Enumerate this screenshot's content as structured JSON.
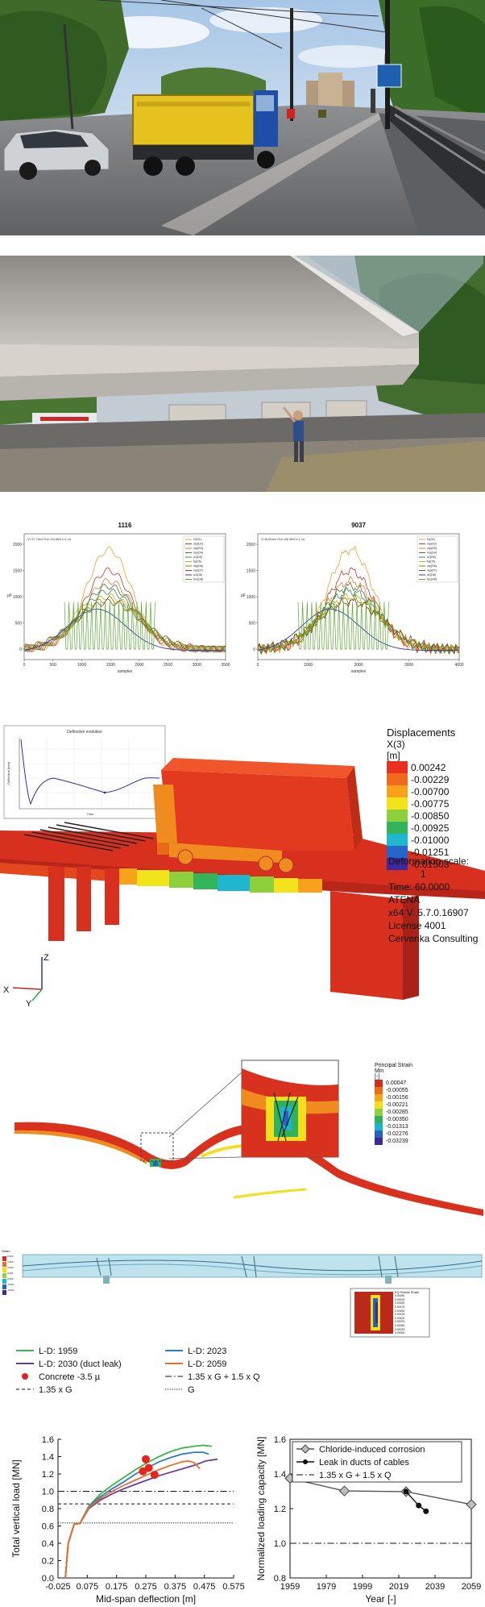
{
  "photo_panels": {
    "bridge_deck": {
      "sign_text": ""
    },
    "bridge_underside": {
      "boat_label": ""
    }
  },
  "sensor_plots": [
    {
      "title": "1116",
      "info": "V=17.7m/s   Gd=-54.3kN   t=1.1s",
      "ylabel": "pF",
      "xlabel": "samples",
      "yticks": [
        "0",
        "500",
        "1000",
        "1500",
        "2000"
      ],
      "xticks": [
        "0",
        "500",
        "1000",
        "1500",
        "2000",
        "2500",
        "3000",
        "3500"
      ],
      "legend": [
        "f1(D1)",
        "mp(D2)",
        "mp(D3)",
        "mp(D4)",
        "a1(D5)",
        "fa(D5)",
        "mp(D6)",
        "mp(D7)",
        "a1(D8)",
        "fa1(D8)"
      ]
    },
    {
      "title": "9037",
      "info": "V=8.82m/s   Gd=-86.3kN   t=1.1s",
      "ylabel": "pF",
      "xlabel": "samples",
      "yticks": [
        "0",
        "500",
        "1000",
        "1500",
        "2000"
      ],
      "xticks": [
        "0",
        "1000",
        "2000",
        "3000",
        "4000"
      ],
      "legend": [
        "f1(D1)",
        "mp(D2)",
        "mp(D3)",
        "mp(D4)",
        "a1(D5)",
        "fa(D5)",
        "mp(D6)",
        "mp(D7)",
        "a1(D8)",
        "fa1(D8)"
      ]
    }
  ],
  "fem_panel": {
    "inset_title": "Deflection evolution",
    "inset_ylabel": "Deflection [mm]",
    "inset_xlabel": "Time",
    "legend_title": "Displacements",
    "legend_sub1": "X(3)",
    "legend_sub2": "[m]",
    "legend_values": [
      "0.00242",
      "-0.00229",
      "-0.00700",
      "-0.00775",
      "-0.00850",
      "-0.00925",
      "-0.01000",
      "-0.01251",
      "-0.01503"
    ],
    "legend_colors": [
      "#e8311f",
      "#f06a1d",
      "#f7a21a",
      "#f3e31c",
      "#8ed03b",
      "#33b45a",
      "#20b6cf",
      "#2466c9",
      "#3a2a9e"
    ],
    "info_lines": [
      "Deformation scale:",
      "1",
      "Time: 60.0000",
      "ATENA",
      "x64 V. 5.7.0.16907",
      "License 4001",
      "Cervenka Consulting"
    ],
    "axes": {
      "z": "Z",
      "x": "X",
      "y": "Y"
    }
  },
  "strain_panel": {
    "legend_title": "Principal Strain",
    "legend_sub1": "Min",
    "legend_sub2": "[-]",
    "legend_values": [
      "0.00047",
      "-0.00055",
      "-0.00156",
      "-0.00221",
      "-0.00285",
      "-0.00350",
      "-0.01313",
      "-0.02276",
      "-0.03239"
    ],
    "legend_colors": [
      "#d62c1e",
      "#ef6b1a",
      "#f6a41b",
      "#f3df1c",
      "#8fd13c",
      "#2fb25a",
      "#1fb3cc",
      "#2463c4",
      "#3b2a9c"
    ]
  },
  "crack_panel": {
    "small_legend_title": "Strain",
    "small_legend_values": [
      "0.004",
      "0.003",
      "0.002",
      "0.001",
      "0.000",
      "-0.001",
      "-0.002"
    ],
    "inset_legend_title": "EQ Plastic Strain",
    "inset_legend_values": [
      "0.00250",
      "0.00225",
      "0.00200",
      "0.00175",
      "0.00150",
      "0.00125",
      "0.00100",
      "0.00075",
      "0.00050",
      "0.00025",
      "0.00000"
    ]
  },
  "chart_data": [
    {
      "type": "line",
      "title": "",
      "xlabel": "Mid-span deflection [m]",
      "ylabel": "Total vertical load [MN]",
      "xlim": [
        -0.025,
        0.575
      ],
      "ylim": [
        0,
        1.6
      ],
      "xticks": [
        "-0.025",
        "0.075",
        "0.175",
        "0.275",
        "0.375",
        "0.475",
        "0.575"
      ],
      "xtick_values": [
        -0.025,
        0.075,
        0.175,
        0.275,
        0.375,
        0.475,
        0.575
      ],
      "yticks": [
        "0.0",
        "0.2",
        "0.4",
        "0.6",
        "0.8",
        "1.0",
        "1.2",
        "1.4",
        "1.6"
      ],
      "ytick_values": [
        0,
        0.2,
        0.4,
        0.6,
        0.8,
        1.0,
        1.2,
        1.4,
        1.6
      ],
      "grid": false,
      "legend_position": "top",
      "series": [
        {
          "name": "L-D: 1959",
          "color": "#3db54a",
          "x": [
            0,
            0.01,
            0.03,
            0.05,
            0.08,
            0.12,
            0.16,
            0.2,
            0.24,
            0.28,
            0.32,
            0.36,
            0.4,
            0.44,
            0.47,
            0.5
          ],
          "y": [
            0.0,
            0.4,
            0.62,
            0.63,
            0.83,
            0.97,
            1.07,
            1.16,
            1.25,
            1.33,
            1.4,
            1.46,
            1.5,
            1.52,
            1.53,
            1.52
          ]
        },
        {
          "name": "L-D: 2023",
          "color": "#2e7dc0",
          "x": [
            0,
            0.01,
            0.03,
            0.05,
            0.08,
            0.12,
            0.16,
            0.2,
            0.24,
            0.28,
            0.32,
            0.36,
            0.4,
            0.44,
            0.47,
            0.49
          ],
          "y": [
            0.0,
            0.4,
            0.62,
            0.63,
            0.82,
            0.94,
            1.03,
            1.11,
            1.2,
            1.27,
            1.34,
            1.39,
            1.43,
            1.45,
            1.45,
            1.43
          ]
        },
        {
          "name": "L-D: 2030 (duct leak)",
          "color": "#6a3d9a",
          "x": [
            0,
            0.01,
            0.03,
            0.05,
            0.08,
            0.12,
            0.16,
            0.2,
            0.24,
            0.28,
            0.32,
            0.36,
            0.4,
            0.44,
            0.48,
            0.52
          ],
          "y": [
            0.0,
            0.4,
            0.62,
            0.63,
            0.8,
            0.9,
            0.97,
            1.03,
            1.08,
            1.13,
            1.18,
            1.22,
            1.26,
            1.3,
            1.35,
            1.37
          ]
        },
        {
          "name": "L-D: 2059",
          "color": "#e8702a",
          "x": [
            0,
            0.01,
            0.03,
            0.05,
            0.08,
            0.12,
            0.16,
            0.2,
            0.24,
            0.28,
            0.32,
            0.36,
            0.4,
            0.42,
            0.44,
            0.46
          ],
          "y": [
            0.0,
            0.4,
            0.62,
            0.63,
            0.81,
            0.92,
            1.0,
            1.07,
            1.13,
            1.19,
            1.25,
            1.3,
            1.34,
            1.35,
            1.33,
            1.26
          ]
        }
      ],
      "points": {
        "name": "Concrete -3.5 µ",
        "color": "#e8231f",
        "x": [
          0.275,
          0.285,
          0.305,
          0.265
        ],
        "y": [
          1.37,
          1.27,
          1.19,
          1.23
        ]
      },
      "reference_lines": [
        {
          "name": "1.35 x G + 1.5 x Q",
          "y": 1.0,
          "style": "dashdot"
        },
        {
          "name": "1.35 x G",
          "y": 0.855,
          "style": "dashed"
        },
        {
          "name": "G",
          "y": 0.635,
          "style": "dotted"
        }
      ]
    },
    {
      "type": "line",
      "title": "",
      "xlabel": "Year [-]",
      "ylabel": "Normalized loading capacity [MN]",
      "xlim": [
        1959,
        2059
      ],
      "ylim": [
        0.8,
        1.6
      ],
      "xticks": [
        "1959",
        "1979",
        "1999",
        "2019",
        "2039",
        "2059"
      ],
      "xtick_values": [
        1959,
        1979,
        1999,
        2019,
        2039,
        2059
      ],
      "yticks": [
        "0.8",
        "1.0",
        "1.2",
        "1.4",
        "1.6"
      ],
      "ytick_values": [
        0.8,
        1.0,
        1.2,
        1.4,
        1.6
      ],
      "grid": false,
      "legend_position": "top",
      "series": [
        {
          "name": "Chloride-induced corrosion",
          "color": "#555555",
          "marker": "diamond",
          "x": [
            1959,
            1989,
            2023,
            2059
          ],
          "y": [
            1.375,
            1.302,
            1.298,
            1.224
          ]
        },
        {
          "name": "Leak in ducts of cables",
          "color": "#111111",
          "marker": "circle",
          "x": [
            2023,
            2030,
            2034
          ],
          "y": [
            1.298,
            1.218,
            1.185
          ]
        }
      ],
      "reference_lines": [
        {
          "name": "1.35 x G + 1.5 x Q",
          "y": 1.0,
          "style": "dashdot"
        }
      ]
    }
  ]
}
